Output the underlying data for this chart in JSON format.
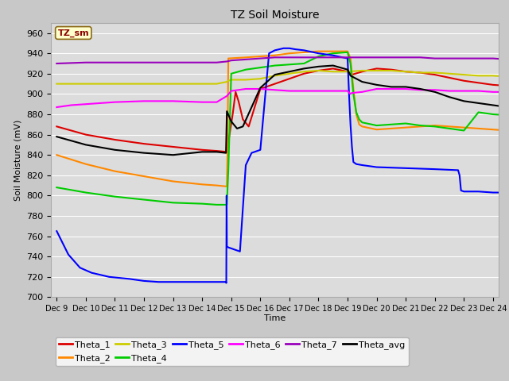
{
  "title": "TZ Soil Moisture",
  "xlabel": "Time",
  "ylabel": "Soil Moisture (mV)",
  "ylim": [
    700,
    970
  ],
  "yticks": [
    700,
    720,
    740,
    760,
    780,
    800,
    820,
    840,
    860,
    880,
    900,
    920,
    940,
    960
  ],
  "xtick_labels": [
    "Dec 9",
    "Dec 10",
    "Dec 11",
    "Dec 12",
    "Dec 13",
    "Dec 14",
    "Dec 15",
    "Dec 16",
    "Dec 17",
    "Dec 18",
    "Dec 19",
    "Dec 20",
    "Dec 21",
    "Dec 22",
    "Dec 23",
    "Dec 24"
  ],
  "fig_bg": "#c8c8c8",
  "plot_bg": "#dcdcdc",
  "legend_box": {
    "text": "TZ_sm",
    "bg": "#ffffcc",
    "edge": "#8B6914",
    "text_color": "#8B0000"
  },
  "series": [
    {
      "name": "Theta_1",
      "color": "#dd0000",
      "points": [
        [
          0,
          868
        ],
        [
          1,
          860
        ],
        [
          2,
          855
        ],
        [
          3,
          851
        ],
        [
          4,
          848
        ],
        [
          5,
          845
        ],
        [
          5.5,
          844
        ],
        [
          5.85,
          843
        ],
        [
          6.05,
          880
        ],
        [
          6.15,
          902
        ],
        [
          6.25,
          893
        ],
        [
          6.4,
          875
        ],
        [
          6.6,
          868
        ],
        [
          7.0,
          905
        ],
        [
          7.5,
          910
        ],
        [
          8.0,
          915
        ],
        [
          8.5,
          920
        ],
        [
          9.0,
          923
        ],
        [
          9.5,
          925
        ],
        [
          10.0,
          922
        ],
        [
          10.15,
          919
        ],
        [
          10.5,
          922
        ],
        [
          11.0,
          925
        ],
        [
          11.5,
          924
        ],
        [
          12.0,
          922
        ],
        [
          12.5,
          921
        ],
        [
          13.0,
          919
        ],
        [
          13.5,
          916
        ],
        [
          14.0,
          913
        ],
        [
          14.5,
          911
        ],
        [
          15.0,
          909
        ],
        [
          15.5,
          908
        ]
      ]
    },
    {
      "name": "Theta_2",
      "color": "#ff8800",
      "points": [
        [
          0,
          840
        ],
        [
          1,
          831
        ],
        [
          2,
          824
        ],
        [
          3,
          819
        ],
        [
          4,
          814
        ],
        [
          5,
          811
        ],
        [
          5.5,
          810
        ],
        [
          5.85,
          809
        ],
        [
          5.87,
          840
        ],
        [
          5.9,
          935
        ],
        [
          6.5,
          936
        ],
        [
          7.0,
          937
        ],
        [
          7.5,
          938
        ],
        [
          8.0,
          940
        ],
        [
          8.5,
          941
        ],
        [
          9.0,
          942
        ],
        [
          9.5,
          942
        ],
        [
          10.0,
          942
        ],
        [
          10.1,
          935
        ],
        [
          10.15,
          920
        ],
        [
          10.2,
          905
        ],
        [
          10.3,
          880
        ],
        [
          10.4,
          870
        ],
        [
          10.5,
          868
        ],
        [
          11.0,
          865
        ],
        [
          11.5,
          866
        ],
        [
          12.0,
          867
        ],
        [
          12.5,
          868
        ],
        [
          13.0,
          869
        ],
        [
          13.5,
          868
        ],
        [
          14.0,
          867
        ],
        [
          14.5,
          866
        ],
        [
          15.0,
          865
        ],
        [
          15.5,
          864
        ]
      ]
    },
    {
      "name": "Theta_3",
      "color": "#cccc00",
      "points": [
        [
          0,
          910
        ],
        [
          1,
          910
        ],
        [
          2,
          910
        ],
        [
          3,
          910
        ],
        [
          4,
          910
        ],
        [
          5,
          910
        ],
        [
          5.5,
          910
        ],
        [
          5.85,
          912
        ],
        [
          5.9,
          913
        ],
        [
          6.0,
          914
        ],
        [
          6.5,
          914
        ],
        [
          7.0,
          915
        ],
        [
          7.5,
          918
        ],
        [
          8.0,
          920
        ],
        [
          8.5,
          922
        ],
        [
          9.0,
          923
        ],
        [
          9.5,
          922
        ],
        [
          10.0,
          922
        ],
        [
          10.5,
          923
        ],
        [
          11.0,
          923
        ],
        [
          11.5,
          923
        ],
        [
          12.0,
          922
        ],
        [
          12.5,
          921
        ],
        [
          13.0,
          921
        ],
        [
          13.5,
          920
        ],
        [
          14.0,
          919
        ],
        [
          14.5,
          918
        ],
        [
          15.0,
          918
        ],
        [
          15.5,
          917
        ]
      ]
    },
    {
      "name": "Theta_4",
      "color": "#00cc00",
      "points": [
        [
          0,
          808
        ],
        [
          1,
          803
        ],
        [
          2,
          799
        ],
        [
          3,
          796
        ],
        [
          4,
          793
        ],
        [
          5,
          792
        ],
        [
          5.5,
          791
        ],
        [
          5.85,
          791
        ],
        [
          5.9,
          825
        ],
        [
          6.0,
          920
        ],
        [
          6.5,
          924
        ],
        [
          7.0,
          926
        ],
        [
          7.5,
          928
        ],
        [
          8.0,
          929
        ],
        [
          8.5,
          930
        ],
        [
          9.0,
          937
        ],
        [
          9.5,
          940
        ],
        [
          10.0,
          941
        ],
        [
          10.1,
          930
        ],
        [
          10.15,
          915
        ],
        [
          10.2,
          900
        ],
        [
          10.3,
          882
        ],
        [
          10.4,
          875
        ],
        [
          10.5,
          872
        ],
        [
          11.0,
          869
        ],
        [
          11.5,
          870
        ],
        [
          12.0,
          871
        ],
        [
          12.5,
          869
        ],
        [
          13.0,
          868
        ],
        [
          13.5,
          866
        ],
        [
          14.0,
          864
        ],
        [
          14.5,
          882
        ],
        [
          15.0,
          880
        ],
        [
          15.5,
          879
        ]
      ]
    },
    {
      "name": "Theta_5",
      "color": "#0000ff",
      "points": [
        [
          0,
          765
        ],
        [
          0.4,
          742
        ],
        [
          0.8,
          729
        ],
        [
          1.2,
          724
        ],
        [
          1.8,
          720
        ],
        [
          2.5,
          718
        ],
        [
          3.0,
          716
        ],
        [
          3.5,
          715
        ],
        [
          4.0,
          715
        ],
        [
          4.5,
          715
        ],
        [
          5.0,
          715
        ],
        [
          5.5,
          715
        ],
        [
          5.82,
          715
        ],
        [
          5.83,
          714
        ],
        [
          5.84,
          800
        ],
        [
          5.85,
          750
        ],
        [
          5.9,
          749
        ],
        [
          6.0,
          748
        ],
        [
          6.1,
          747
        ],
        [
          6.2,
          746
        ],
        [
          6.3,
          745
        ],
        [
          6.5,
          830
        ],
        [
          6.7,
          842
        ],
        [
          7.0,
          845
        ],
        [
          7.3,
          940
        ],
        [
          7.5,
          943
        ],
        [
          7.8,
          945
        ],
        [
          8.0,
          945
        ],
        [
          8.2,
          944
        ],
        [
          8.5,
          943
        ],
        [
          9.0,
          940
        ],
        [
          9.5,
          938
        ],
        [
          10.0,
          935
        ],
        [
          10.05,
          900
        ],
        [
          10.1,
          870
        ],
        [
          10.15,
          848
        ],
        [
          10.2,
          833
        ],
        [
          10.3,
          831
        ],
        [
          10.5,
          830
        ],
        [
          11.0,
          828
        ],
        [
          12.0,
          827
        ],
        [
          13.0,
          826
        ],
        [
          13.8,
          825
        ],
        [
          13.85,
          820
        ],
        [
          13.9,
          805
        ],
        [
          14.0,
          804
        ],
        [
          14.5,
          804
        ],
        [
          15.0,
          803
        ],
        [
          15.5,
          803
        ]
      ]
    },
    {
      "name": "Theta_6",
      "color": "#ff00ff",
      "points": [
        [
          0,
          887
        ],
        [
          0.5,
          889
        ],
        [
          1,
          890
        ],
        [
          1.5,
          891
        ],
        [
          2,
          892
        ],
        [
          3,
          893
        ],
        [
          4,
          893
        ],
        [
          5,
          892
        ],
        [
          5.5,
          892
        ],
        [
          5.85,
          898
        ],
        [
          6.0,
          903
        ],
        [
          6.5,
          905
        ],
        [
          7.0,
          905
        ],
        [
          7.5,
          904
        ],
        [
          8.0,
          903
        ],
        [
          8.5,
          903
        ],
        [
          9.0,
          903
        ],
        [
          9.5,
          903
        ],
        [
          10.0,
          903
        ],
        [
          10.1,
          900
        ],
        [
          10.15,
          901
        ],
        [
          10.5,
          902
        ],
        [
          11.0,
          905
        ],
        [
          11.5,
          905
        ],
        [
          12.0,
          905
        ],
        [
          12.5,
          904
        ],
        [
          13.0,
          904
        ],
        [
          13.5,
          903
        ],
        [
          14.0,
          903
        ],
        [
          14.5,
          903
        ],
        [
          15.0,
          902
        ],
        [
          15.5,
          902
        ]
      ]
    },
    {
      "name": "Theta_7",
      "color": "#9900bb",
      "points": [
        [
          0,
          930
        ],
        [
          1,
          931
        ],
        [
          2,
          931
        ],
        [
          3,
          931
        ],
        [
          4,
          931
        ],
        [
          5,
          931
        ],
        [
          5.5,
          931
        ],
        [
          5.85,
          932
        ],
        [
          6.0,
          933
        ],
        [
          6.5,
          934
        ],
        [
          7.0,
          935
        ],
        [
          7.5,
          936
        ],
        [
          8.0,
          936
        ],
        [
          8.5,
          936
        ],
        [
          9.0,
          936
        ],
        [
          9.5,
          936
        ],
        [
          10.0,
          936
        ],
        [
          10.5,
          936
        ],
        [
          11.0,
          936
        ],
        [
          11.5,
          936
        ],
        [
          12.0,
          936
        ],
        [
          12.5,
          936
        ],
        [
          13.0,
          935
        ],
        [
          13.5,
          935
        ],
        [
          14.0,
          935
        ],
        [
          14.5,
          935
        ],
        [
          15.0,
          935
        ],
        [
          15.5,
          934
        ]
      ]
    },
    {
      "name": "Theta_avg",
      "color": "#000000",
      "points": [
        [
          0,
          858
        ],
        [
          1,
          850
        ],
        [
          2,
          845
        ],
        [
          3,
          842
        ],
        [
          4,
          840
        ],
        [
          5,
          843
        ],
        [
          5.5,
          843
        ],
        [
          5.82,
          842
        ],
        [
          5.85,
          883
        ],
        [
          6.0,
          873
        ],
        [
          6.2,
          866
        ],
        [
          6.4,
          868
        ],
        [
          7.0,
          906
        ],
        [
          7.5,
          919
        ],
        [
          8.0,
          922
        ],
        [
          8.5,
          925
        ],
        [
          9.0,
          927
        ],
        [
          9.5,
          928
        ],
        [
          10.0,
          924
        ],
        [
          10.1,
          918
        ],
        [
          10.5,
          912
        ],
        [
          11.0,
          909
        ],
        [
          11.5,
          907
        ],
        [
          12.0,
          907
        ],
        [
          12.5,
          905
        ],
        [
          13.0,
          902
        ],
        [
          13.5,
          897
        ],
        [
          14.0,
          893
        ],
        [
          14.5,
          891
        ],
        [
          15.0,
          889
        ],
        [
          15.5,
          887
        ]
      ]
    }
  ]
}
